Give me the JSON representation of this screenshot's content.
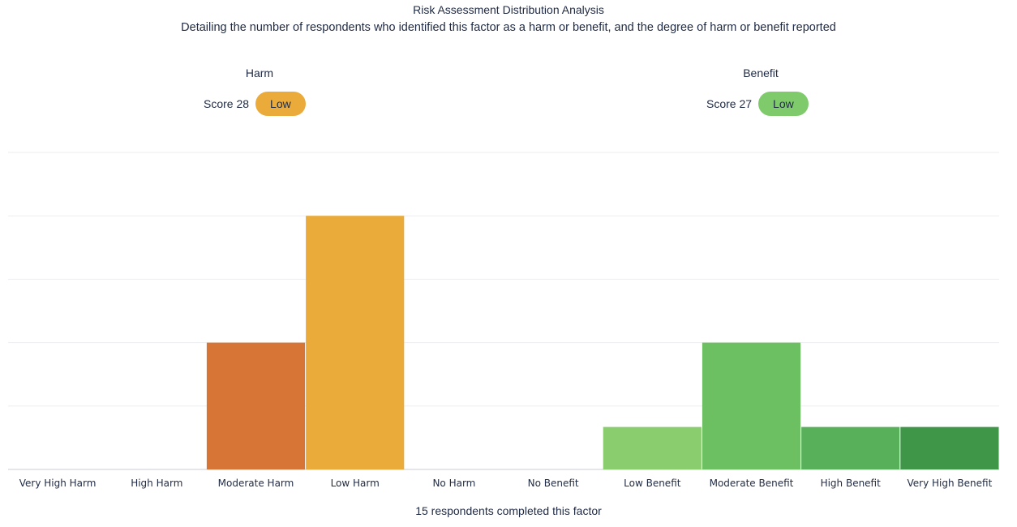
{
  "chart_data": {
    "type": "bar",
    "title": "Risk Assessment Distribution Analysis",
    "subtitle": "Detailing the number of respondents who identified this factor as a harm or benefit, and the degree of harm or benefit reported",
    "categories": [
      "Very High Harm",
      "High Harm",
      "Moderate Harm",
      "Low Harm",
      "No Harm",
      "No Benefit",
      "Low Benefit",
      "Moderate Benefit",
      "High Benefit",
      "Very High Benefit"
    ],
    "values": [
      0,
      0,
      2,
      4,
      0,
      0,
      0.67,
      2,
      0.67,
      0.67
    ],
    "colors": [
      "#d67535",
      "#d67535",
      "#d67535",
      "#eaab3b",
      "#cccccc",
      "#cccccc",
      "#8acd6f",
      "#6cc061",
      "#58b05a",
      "#3f9548"
    ],
    "ylim": [
      0,
      5
    ],
    "grid": true,
    "xlabel": "",
    "ylabel": ""
  },
  "harm": {
    "label": "Harm",
    "score_text": "Score 28",
    "level": "Low",
    "badge_color": "#eaab3b"
  },
  "benefit": {
    "label": "Benefit",
    "score_text": "Score 27",
    "level": "Low",
    "badge_color": "#7fcb6c"
  },
  "footer": "15 respondents completed this factor"
}
